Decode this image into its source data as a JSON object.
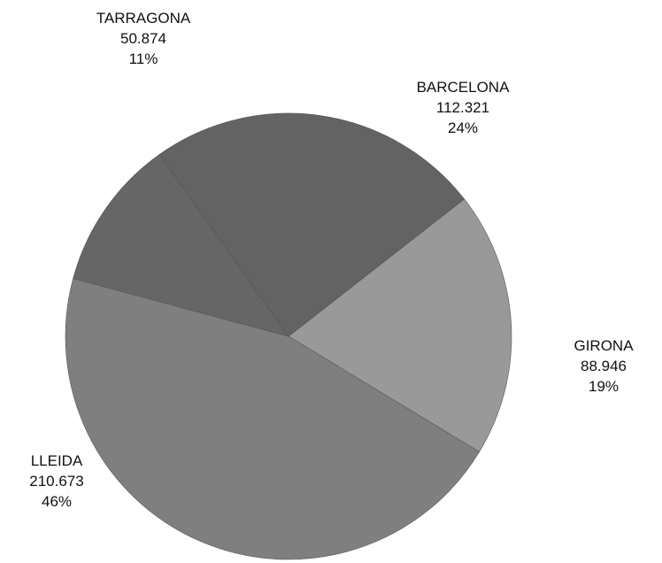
{
  "chart_data": {
    "type": "pie",
    "start_angle_deg": 52,
    "direction": "clockwise",
    "slices": [
      {
        "name": "GIRONA",
        "value": 88946,
        "value_label": "88.946",
        "percent_label": "19%",
        "color": "#999999"
      },
      {
        "name": "LLEIDA",
        "value": 210673,
        "value_label": "210.673",
        "percent_label": "46%",
        "color": "#7f7f7f"
      },
      {
        "name": "TARRAGONA",
        "value": 50874,
        "value_label": "50.874",
        "percent_label": "11%",
        "color": "#666666"
      },
      {
        "name": "BARCELONA",
        "value": 112321,
        "value_label": "112.321",
        "percent_label": "24%",
        "color": "#636363"
      }
    ]
  }
}
